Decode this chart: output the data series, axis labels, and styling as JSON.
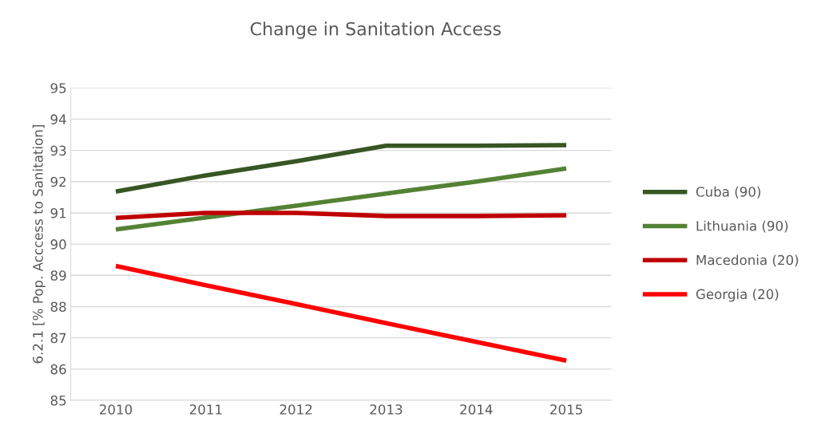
{
  "chart_data": {
    "type": "line",
    "title": "Change in Sanitation Access",
    "ylabel": "6.2.1 [% Pop. Acccess to Sanitation]",
    "categories": [
      "2010",
      "2011",
      "2012",
      "2013",
      "2014",
      "2015"
    ],
    "series": [
      {
        "name": "Cuba (90)",
        "color": "#375623",
        "values": [
          91.68,
          92.2,
          92.65,
          93.15,
          93.15,
          93.17
        ]
      },
      {
        "name": "Lithuania (90)",
        "color": "#548235",
        "values": [
          90.47,
          90.85,
          91.23,
          91.62,
          92.0,
          92.42
        ]
      },
      {
        "name": "Macedonia (20)",
        "color": "#c00000",
        "values": [
          90.84,
          91.0,
          91.0,
          90.9,
          90.9,
          90.92
        ]
      },
      {
        "name": "Georgia (20)",
        "color": "#ff0000",
        "values": [
          89.3,
          88.68,
          88.08,
          87.47,
          86.87,
          86.27
        ]
      }
    ],
    "ylim": [
      85,
      95
    ],
    "yticks": [
      85,
      86,
      87,
      88,
      89,
      90,
      91,
      92,
      93,
      94,
      95
    ],
    "grid": "y",
    "legend": "right",
    "marker": "none",
    "line_style": "solid"
  }
}
